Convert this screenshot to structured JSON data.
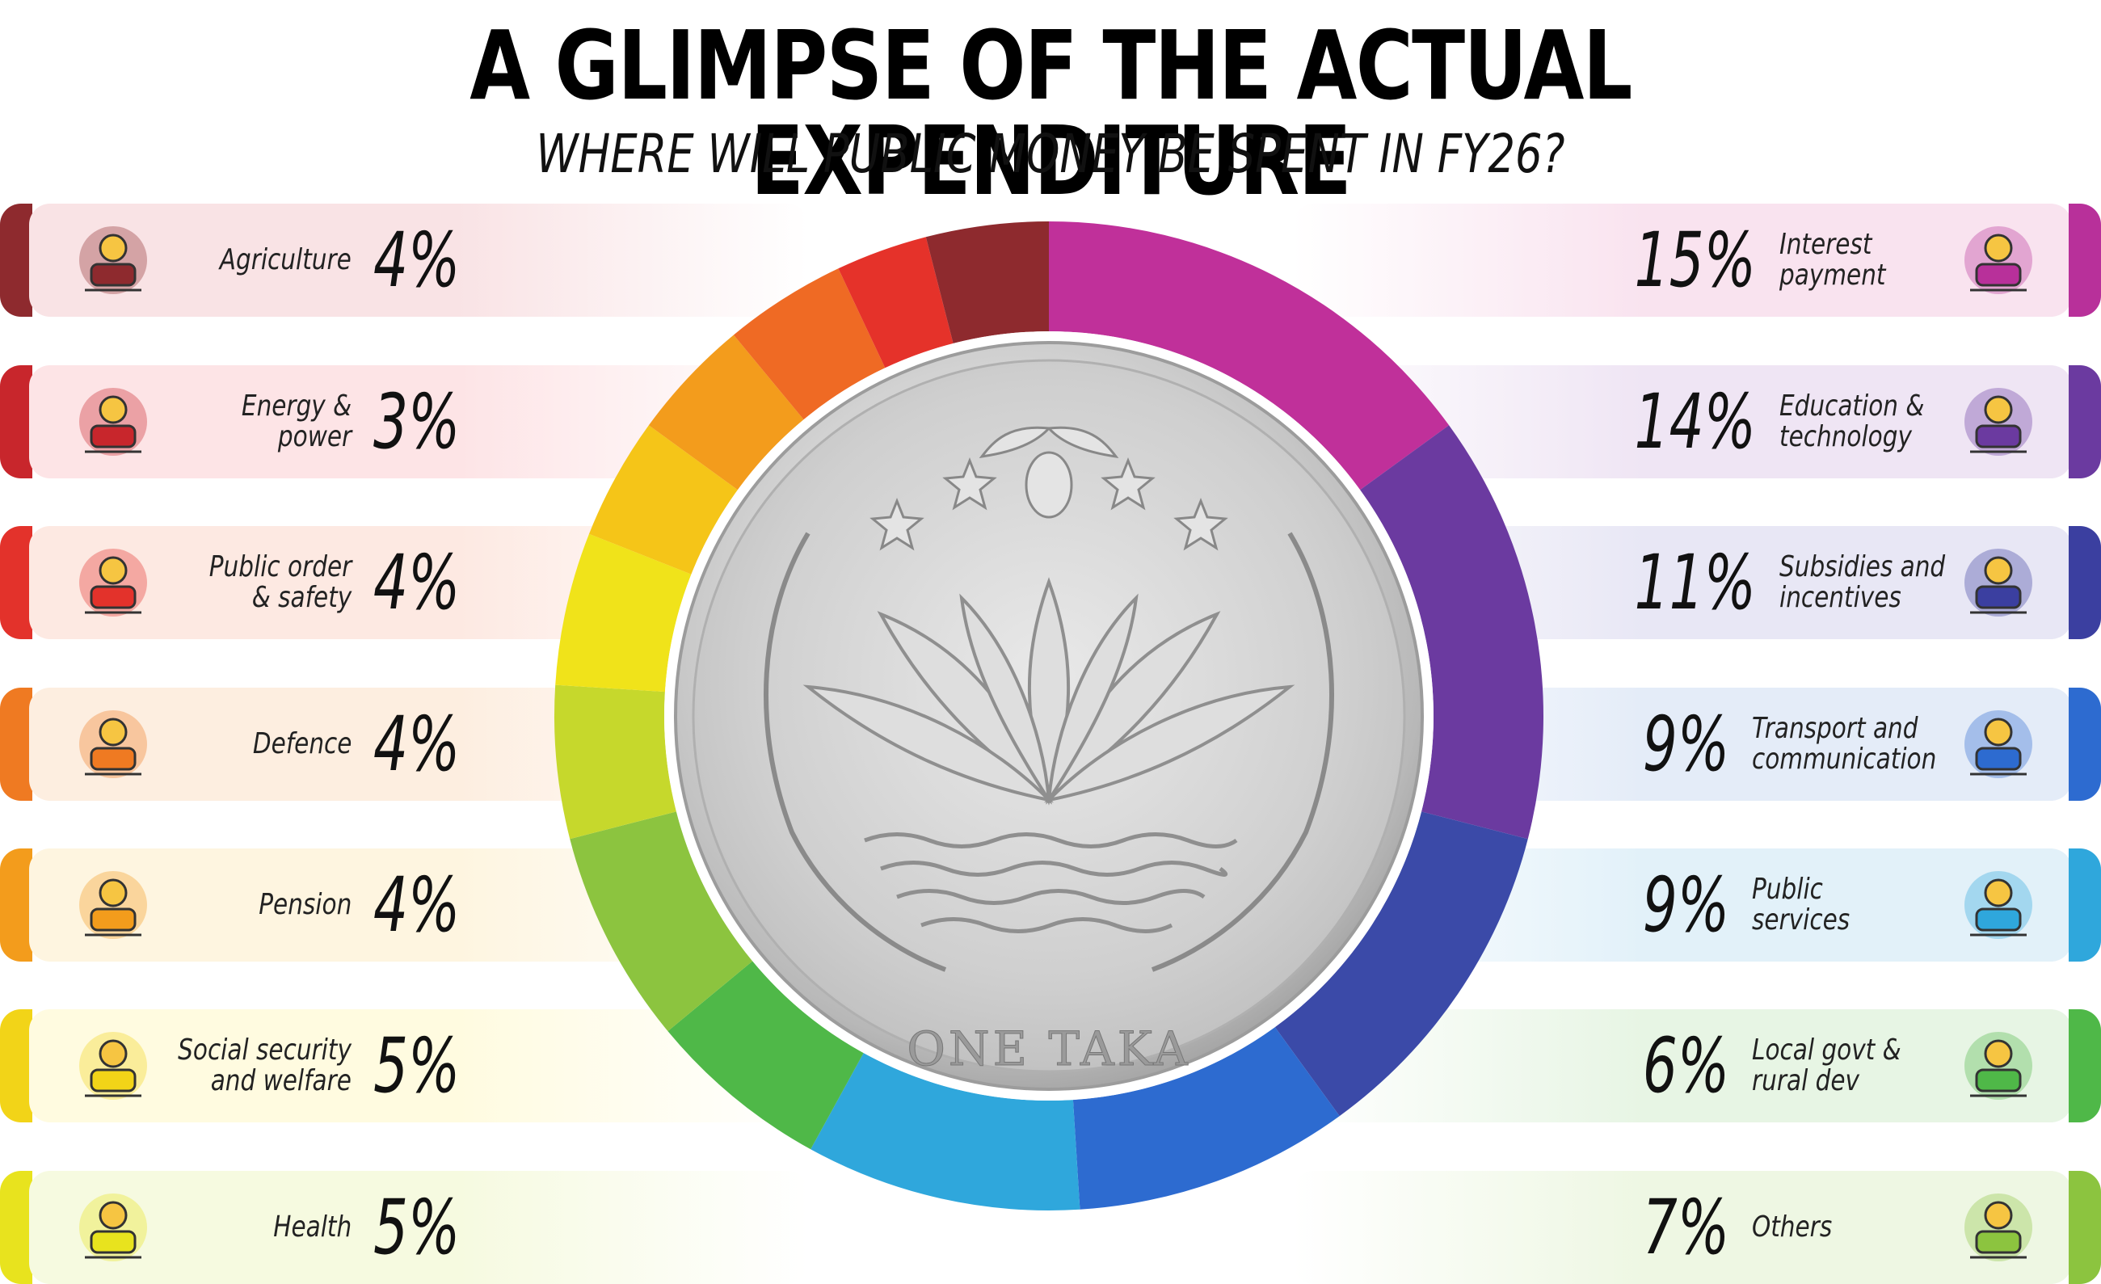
{
  "title": "A GLIMPSE OF THE ACTUAL EXPENDITURE",
  "subtitle": "WHERE WILL PUBLIC MONEY BE SPENT IN FY26?",
  "coin_text": "ONE TAKA",
  "chart_data": {
    "type": "pie",
    "title": "A GLIMPSE OF THE ACTUAL EXPENDITURE",
    "subtitle": "WHERE WILL PUBLIC MONEY BE SPENT IN FY26?",
    "unit": "%",
    "slices": [
      {
        "label": "Interest payment",
        "value": 15,
        "value_label": "15%",
        "color": "#c0309a",
        "icon": "hand-money-percent-icon"
      },
      {
        "label": "Education & technology",
        "value": 14,
        "value_label": "14%",
        "color": "#6b3aa0",
        "icon": "lightbulb-brain-graduation-icon"
      },
      {
        "label": "Subsidies and incentives",
        "value": 11,
        "value_label": "11%",
        "color": "#3b4aa8",
        "icon": "money-bag-stars-icon"
      },
      {
        "label": "Transport and communication",
        "value": 9,
        "value_label": "9%",
        "color": "#2d6bd0",
        "icon": "plane-bus-train-icon"
      },
      {
        "label": "Public services",
        "value": 9,
        "value_label": "9%",
        "color": "#2fa7dc",
        "icon": "hand-people-icon"
      },
      {
        "label": "Local govt & rural dev",
        "value": 6,
        "value_label": "6%",
        "color": "#4fb848",
        "icon": "buildings-growth-gear-icon"
      },
      {
        "label": "Others",
        "value": 7,
        "value_label": "7%",
        "color": "#8cc43f",
        "icon": "hand-chat-bubbles-icon"
      },
      {
        "label": "Health",
        "value": 5,
        "value_label": "5%",
        "color": "#c6d82c",
        "icon": "stethoscope-heart-icon"
      },
      {
        "label": "Social security and welfare",
        "value": 5,
        "value_label": "5%",
        "color": "#f0e31a",
        "icon": "hands-family-shield-icon"
      },
      {
        "label": "Pension",
        "value": 4,
        "value_label": "4%",
        "color": "#f5c518",
        "icon": "hand-coins-cane-icon"
      },
      {
        "label": "Defence",
        "value": 4,
        "value_label": "4%",
        "color": "#f39c1c",
        "icon": "soldier-icon"
      },
      {
        "label": "Public order & safety",
        "value": 4,
        "value_label": "4%",
        "color": "#ef6a24",
        "icon": "people-shield-icon"
      },
      {
        "label": "Energy & power",
        "value": 3,
        "value_label": "3%",
        "color": "#e5322a",
        "icon": "power-tower-lightning-icon"
      },
      {
        "label": "Agriculture",
        "value": 4,
        "value_label": "4%",
        "color": "#8e2a2e",
        "icon": "gear-field-sprout-icon"
      }
    ]
  },
  "left_items": [
    {
      "label_lines": [
        "Agriculture"
      ],
      "pct": "4%",
      "edge": "#8e2a2e",
      "tint": "#f9e3e5"
    },
    {
      "label_lines": [
        "Energy  &",
        "power"
      ],
      "pct": "3%",
      "edge": "#c8262c",
      "tint": "#fde4e6"
    },
    {
      "label_lines": [
        "Public order",
        "& safety"
      ],
      "pct": "4%",
      "edge": "#e3322b",
      "tint": "#fde9e2"
    },
    {
      "label_lines": [
        "Defence"
      ],
      "pct": "4%",
      "edge": "#ef7a22",
      "tint": "#fdeee0"
    },
    {
      "label_lines": [
        "Pension"
      ],
      "pct": "4%",
      "edge": "#f39c1c",
      "tint": "#fef5e0"
    },
    {
      "label_lines": [
        "Social security",
        "and welfare"
      ],
      "pct": "5%",
      "edge": "#f2d418",
      "tint": "#fffbe0"
    },
    {
      "label_lines": [
        "Health"
      ],
      "pct": "5%",
      "edge": "#e8e31e",
      "tint": "#f6fae0"
    }
  ],
  "right_items": [
    {
      "label_lines": [
        "Interest",
        "payment"
      ],
      "pct": "15%",
      "edge": "#b8309a",
      "tint": "#f9e3ef"
    },
    {
      "label_lines": [
        "Education &",
        "technology"
      ],
      "pct": "14%",
      "edge": "#6b3aa0",
      "tint": "#efe5f4"
    },
    {
      "label_lines": [
        "Subsidies and",
        "incentives"
      ],
      "pct": "11%",
      "edge": "#3b3fa0",
      "tint": "#e8e7f5"
    },
    {
      "label_lines": [
        "Transport and",
        "communication"
      ],
      "pct": "9%",
      "edge": "#2d6bd0",
      "tint": "#e4ecf8"
    },
    {
      "label_lines": [
        "Public",
        "services"
      ],
      "pct": "9%",
      "edge": "#2fa7dc",
      "tint": "#e2f1f9"
    },
    {
      "label_lines": [
        "Local govt &",
        "rural dev"
      ],
      "pct": "6%",
      "edge": "#4fb848",
      "tint": "#e7f5e4"
    },
    {
      "label_lines": [
        "Others"
      ],
      "pct": "7%",
      "edge": "#8cc43f",
      "tint": "#eef7e3"
    }
  ]
}
